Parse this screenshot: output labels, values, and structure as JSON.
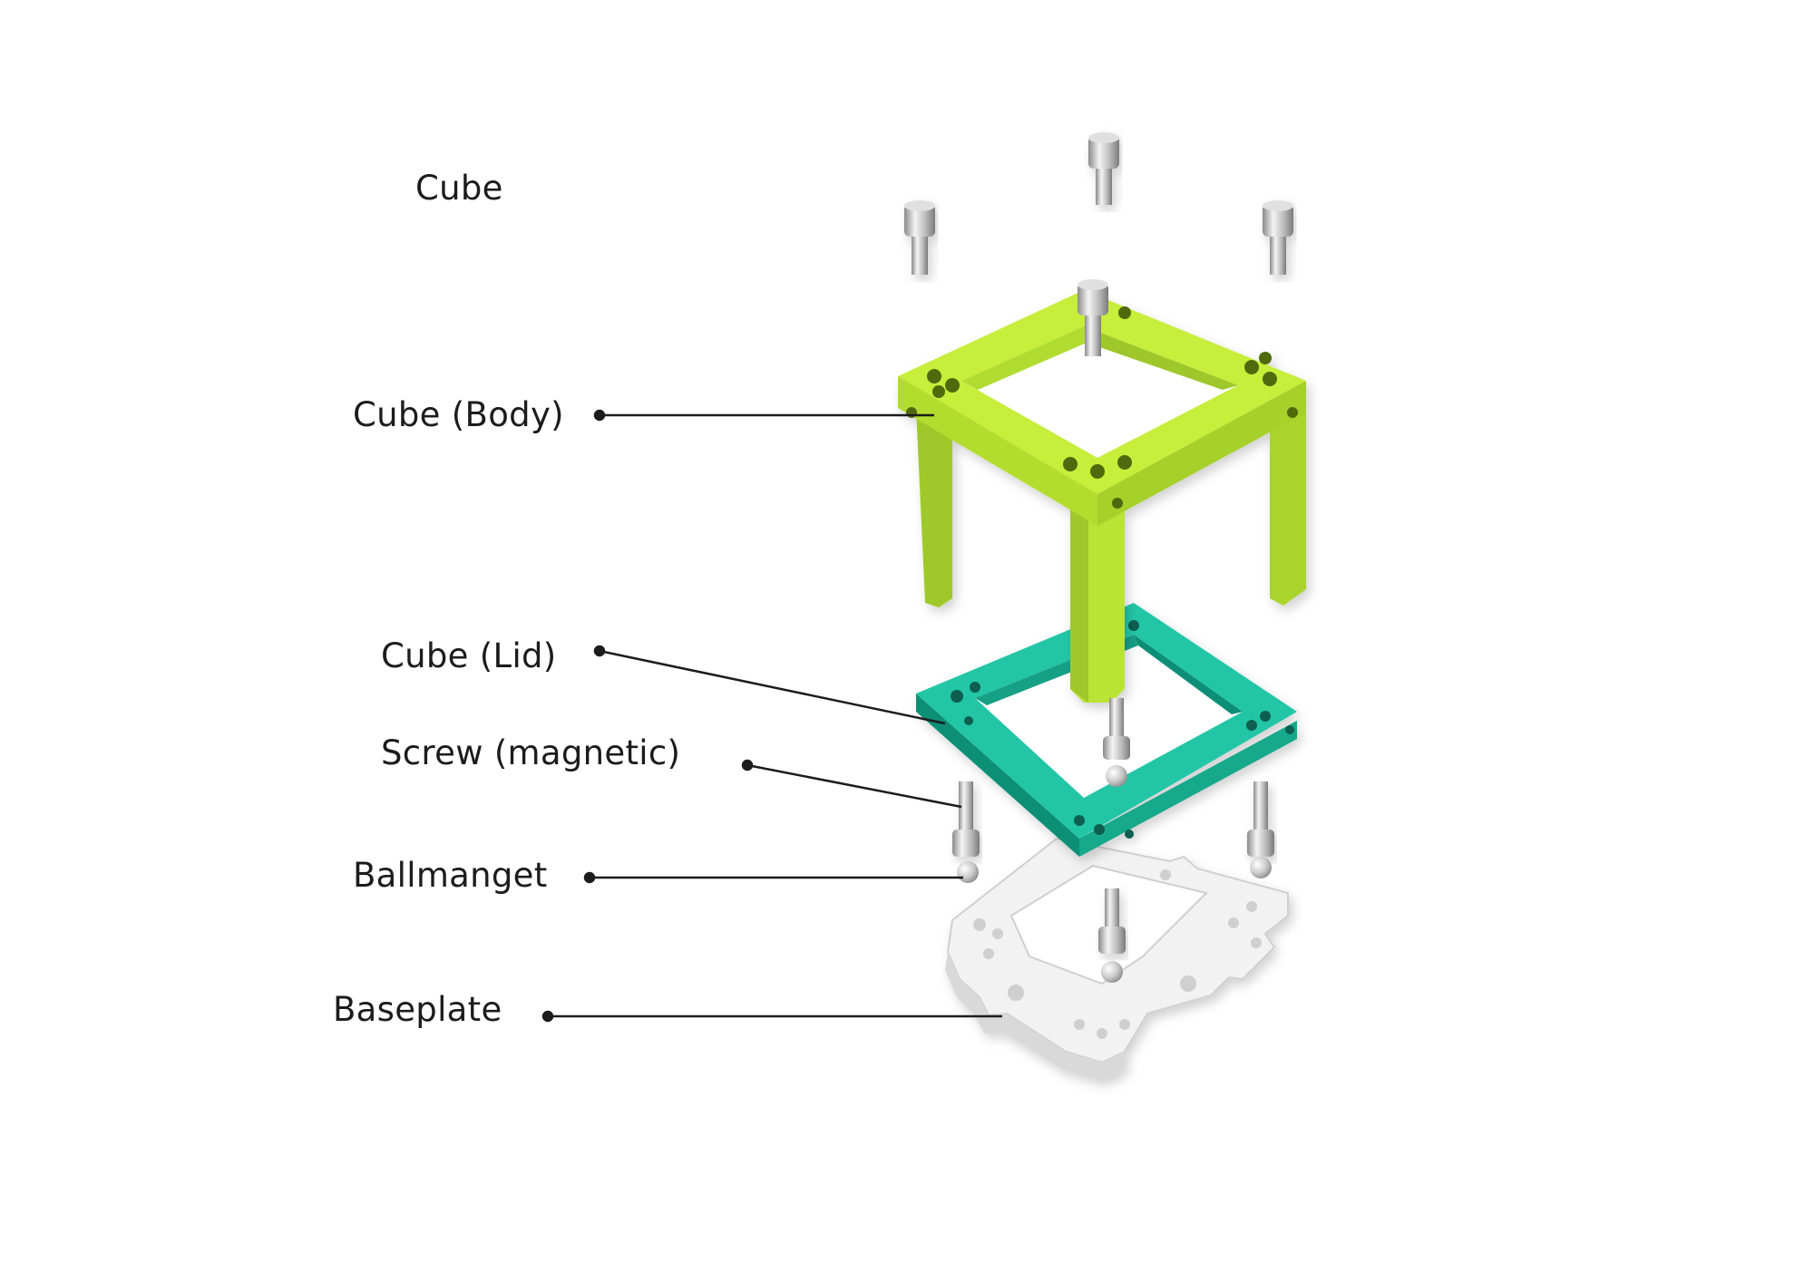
{
  "diagram": {
    "title": "Cube",
    "labels": [
      {
        "id": "body",
        "text": "Cube (Body)",
        "part": "cube-body"
      },
      {
        "id": "lid",
        "text": "Cube (Lid)",
        "part": "cube-lid"
      },
      {
        "id": "screw",
        "text": "Screw (magnetic)",
        "part": "magnetic-screw"
      },
      {
        "id": "magnet",
        "text": "Ballmanget",
        "part": "ball-magnet"
      },
      {
        "id": "baseplate",
        "text": "Baseplate",
        "part": "baseplate"
      }
    ]
  },
  "colors": {
    "body": "#c6ee3a",
    "lid": "#1fb89a",
    "baseplate": "#f2f2f2",
    "screw": "#c8c8c8",
    "leader": "#1c1c1c"
  }
}
